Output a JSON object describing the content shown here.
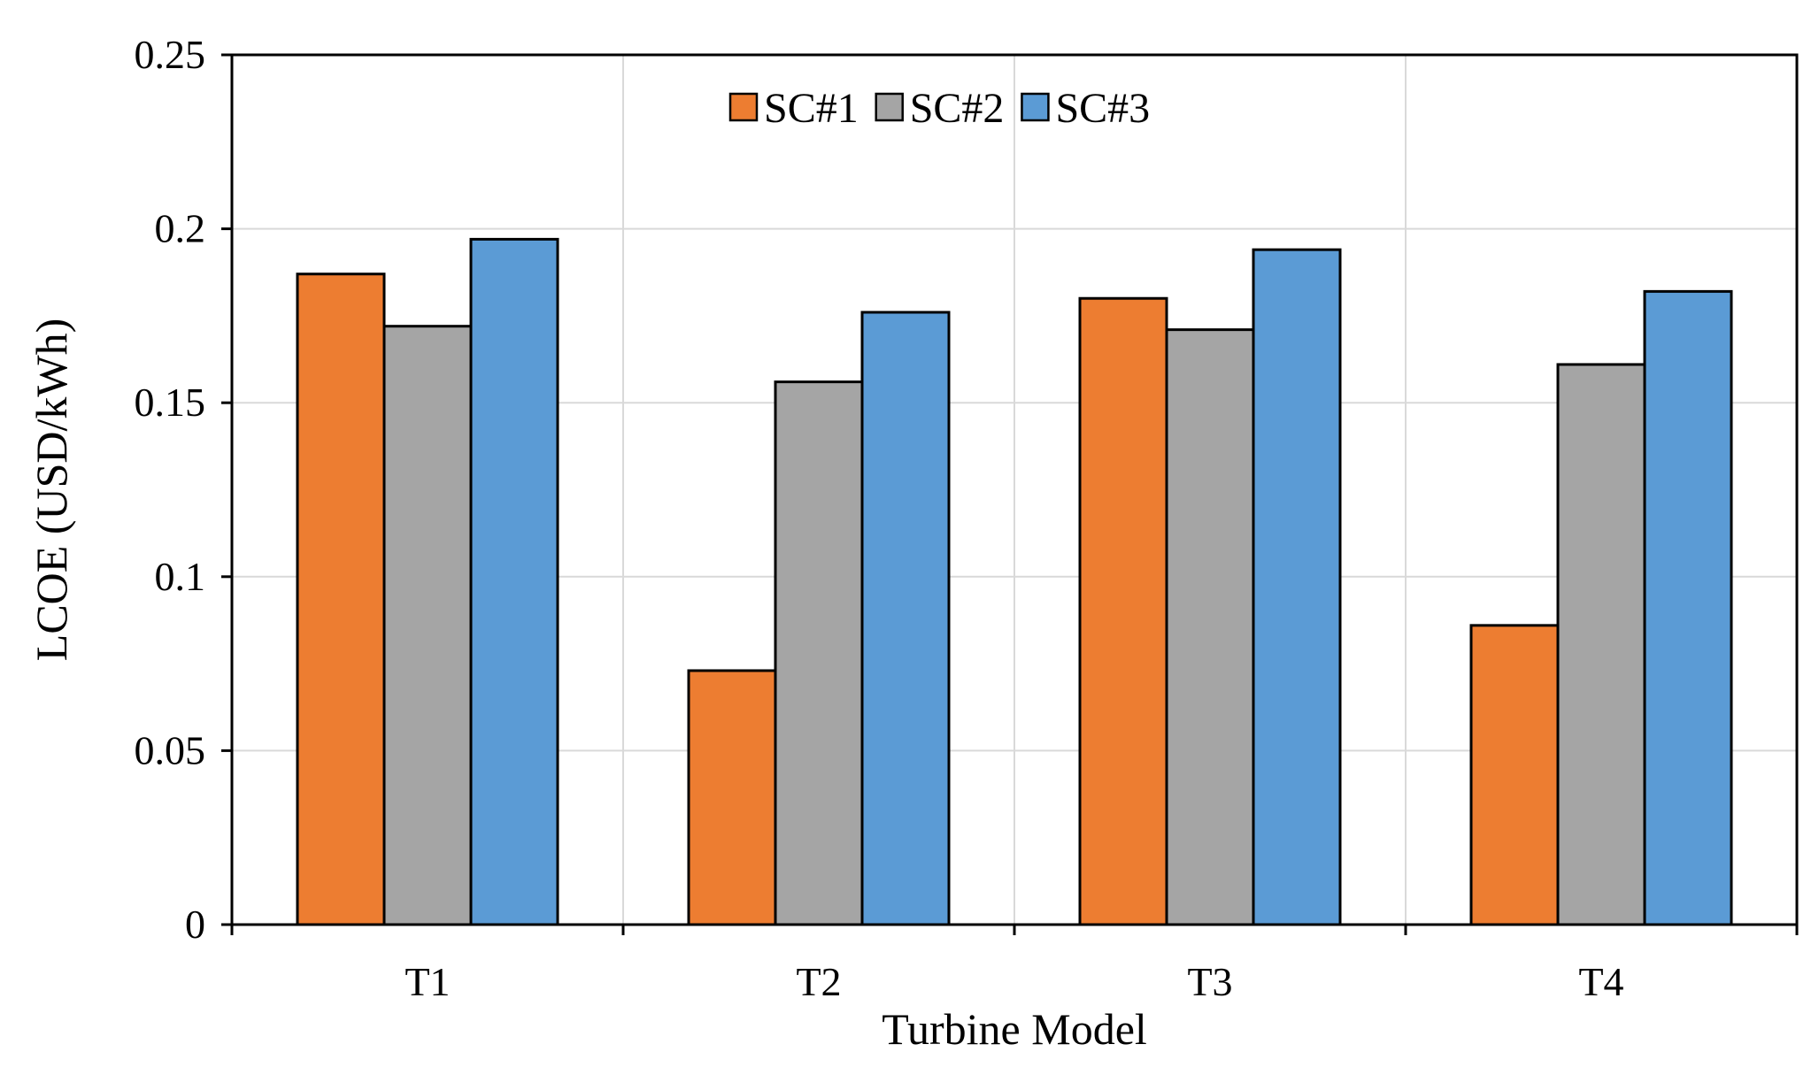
{
  "chart_data": {
    "type": "bar",
    "title": "",
    "xlabel": "Turbine Model",
    "ylabel": "LCOE (USD/kWh)",
    "categories": [
      "T1",
      "T2",
      "T3",
      "T4"
    ],
    "ylim": [
      0,
      0.25
    ],
    "yticks": [
      0,
      0.05,
      0.1,
      0.15,
      0.2,
      0.25
    ],
    "ytick_labels": [
      "0",
      "0.05",
      "0.1",
      "0.15",
      "0.2",
      "0.25"
    ],
    "grid": true,
    "legend_position": "top-center",
    "series": [
      {
        "name": "SC#1",
        "color": "#ED7D31",
        "values": [
          0.187,
          0.073,
          0.18,
          0.086
        ]
      },
      {
        "name": "SC#2",
        "color": "#A5A5A5",
        "values": [
          0.172,
          0.156,
          0.171,
          0.161
        ]
      },
      {
        "name": "SC#3",
        "color": "#5B9BD5",
        "values": [
          0.197,
          0.176,
          0.194,
          0.182
        ]
      }
    ]
  }
}
